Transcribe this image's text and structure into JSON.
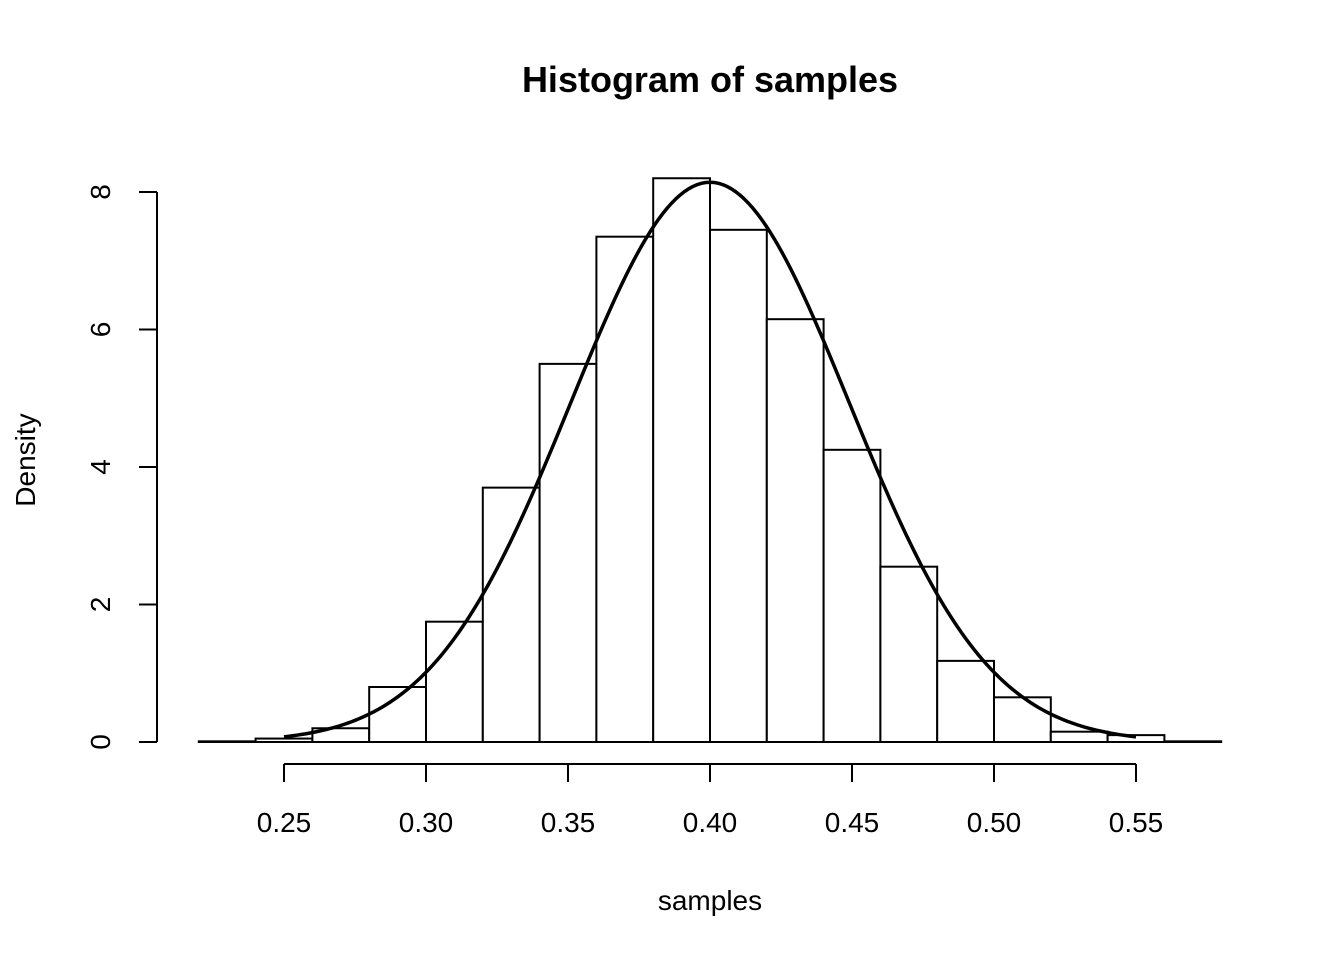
{
  "chart_data": {
    "type": "bar",
    "subtype": "histogram",
    "title": "Histogram of samples",
    "xlabel": "samples",
    "ylabel": "Density",
    "xlim": [
      0.22,
      0.58
    ],
    "ylim": [
      0,
      8.2
    ],
    "x_ticks": [
      0.25,
      0.3,
      0.35,
      0.4,
      0.45,
      0.5,
      0.55
    ],
    "x_tick_labels": [
      "0.25",
      "0.30",
      "0.35",
      "0.40",
      "0.45",
      "0.50",
      "0.55"
    ],
    "y_ticks": [
      0,
      2,
      4,
      6,
      8
    ],
    "y_tick_labels": [
      "0",
      "2",
      "4",
      "6",
      "8"
    ],
    "bin_edges": [
      0.22,
      0.24,
      0.26,
      0.28,
      0.3,
      0.32,
      0.34,
      0.36,
      0.38,
      0.4,
      0.42,
      0.44,
      0.46,
      0.48,
      0.5,
      0.52,
      0.54,
      0.56,
      0.58
    ],
    "densities": [
      0.01,
      0.05,
      0.2,
      0.8,
      1.75,
      3.7,
      5.5,
      7.35,
      8.2,
      7.45,
      6.15,
      4.25,
      2.55,
      1.18,
      0.65,
      0.15,
      0.1,
      0.01
    ],
    "curve": {
      "type": "normal-density",
      "mean": 0.4,
      "sd": 0.049,
      "x_range": [
        0.25,
        0.55
      ]
    },
    "grid": false,
    "legend": "none"
  }
}
